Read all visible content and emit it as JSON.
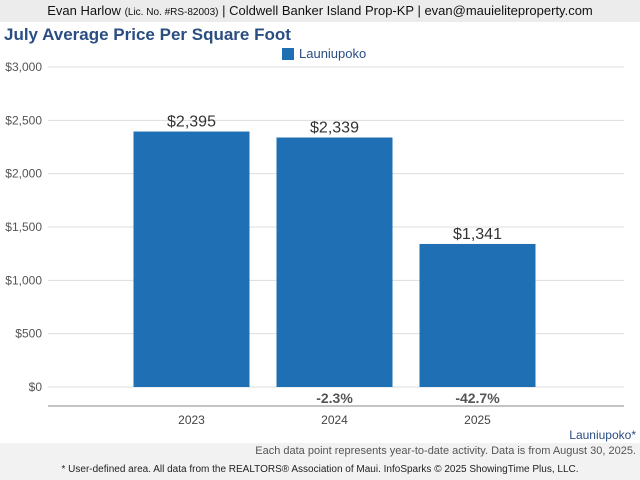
{
  "header": {
    "agent_name": "Evan Harlow",
    "license": "(Lic. No. #RS-82003)",
    "rest": "| Coldwell Banker Island Prop-KP | evan@mauieliteproperty.com"
  },
  "legend": {
    "label": "Launiupoko",
    "color": "#1f6fb5"
  },
  "chart_data": {
    "type": "bar",
    "title": "July Average Price Per Square Foot",
    "categories": [
      "2023",
      "2024",
      "2025"
    ],
    "series": [
      {
        "name": "Launiupoko",
        "values": [
          2395,
          2339,
          1341
        ]
      }
    ],
    "value_labels": [
      "$2,395",
      "$2,339",
      "$1,341"
    ],
    "percent_changes": [
      "",
      "-2.3%",
      "-42.7%"
    ],
    "y_ticks": [
      "$0",
      "$500",
      "$1,000",
      "$1,500",
      "$2,000",
      "$2,500",
      "$3,000"
    ],
    "ylim": [
      0,
      3000
    ],
    "grid": true,
    "legend_position": "top-center",
    "bar_color": "#1f6fb5"
  },
  "notes": {
    "area": "Launiupoko*",
    "data_note": "Each data point represents year-to-date activity. Data is from August 30, 2025.",
    "footer": "* User-defined area. All data from the REALTORS® Association of Maui. InfoSparks © 2025 ShowingTime Plus, LLC."
  }
}
